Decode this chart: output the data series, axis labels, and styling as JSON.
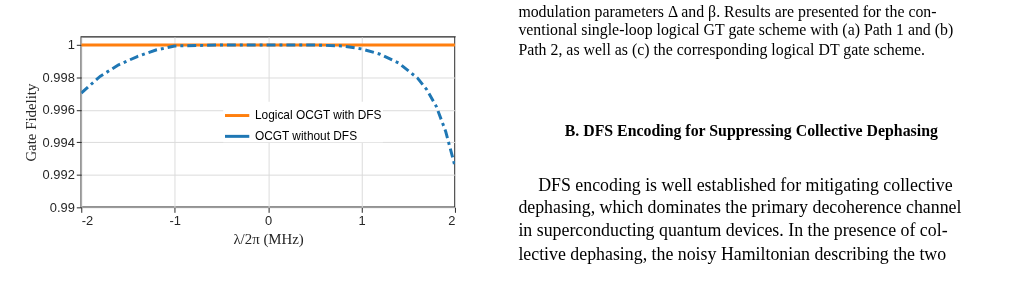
{
  "chart_data": {
    "type": "line",
    "xlabel": "λ/2π (MHz)",
    "ylabel": "Gate Fidelity",
    "xlim": [
      -2,
      2
    ],
    "xticks": [
      -2,
      -1,
      0,
      1,
      2
    ],
    "ylim": [
      0.99,
      1.0005
    ],
    "yticks": [
      0.99,
      0.992,
      0.994,
      0.996,
      0.998,
      1
    ],
    "grid": true,
    "legend": "center",
    "marker": "none",
    "series": [
      {
        "name": "Logical OCGT with DFS",
        "color": "#ff7f0e",
        "line_style": "solid",
        "x": [
          -2,
          2
        ],
        "values": [
          1,
          1
        ]
      },
      {
        "name": "OCGT without DFS",
        "color": "#1f77b4",
        "line_style": "dashed",
        "x": [
          -2,
          -1.8,
          -1.6,
          -1.4,
          -1.2,
          -1,
          -0.5,
          0,
          0.5,
          0.8,
          1,
          1.2,
          1.4,
          1.6,
          1.7,
          1.8,
          1.9,
          2
        ],
        "values": [
          0.99704,
          0.99806,
          0.99878,
          0.99929,
          0.99969,
          0.99994,
          1,
          1,
          1,
          0.99994,
          0.99976,
          0.99943,
          0.99888,
          0.99796,
          0.99724,
          0.99622,
          0.99469,
          0.99255
        ]
      }
    ],
    "annotations": [
      "modulation parameters Δ and β. Results are presented for the con-",
      "ventional single-loop logical GT gate scheme with (a) Path 1 and (b)",
      "Path 2, as well as (c) the corresponding logical DT gate scheme.",
      "B.   DFS Encoding for Suppressing Collective Dephasing",
      "DFS encoding is well established for mitigating collective",
      "dephasing, which dominates the primary decoherence channel",
      "in superconducting quantum devices. In the presence of col-",
      "lective dephasing, the noisy Hamiltonian describing the two"
    ]
  }
}
